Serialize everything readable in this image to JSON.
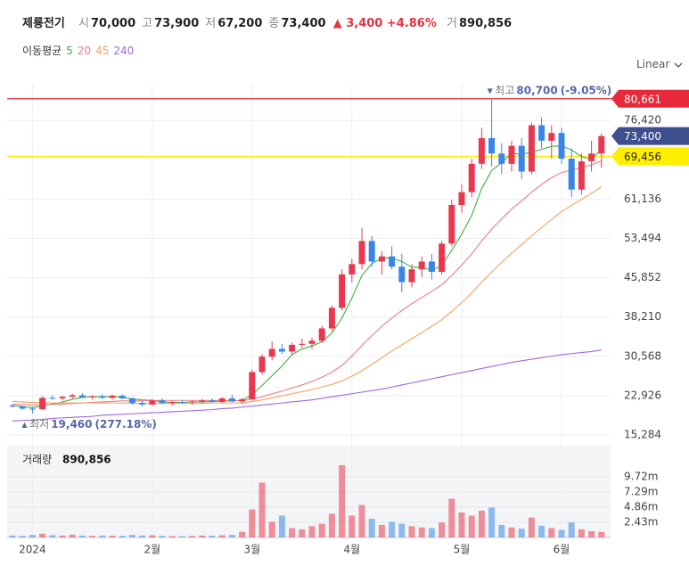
{
  "header": {
    "name": "제룡전기",
    "fields": [
      {
        "label": "시",
        "value": "70,000"
      },
      {
        "label": "고",
        "value": "73,900"
      },
      {
        "label": "저",
        "value": "67,200"
      },
      {
        "label": "종",
        "value": "73,400"
      }
    ],
    "change": "3,400",
    "change_pct": "+4.86%",
    "volume_label": "거",
    "volume": "890,856"
  },
  "chart_data": {
    "type": "candlestick",
    "scale_mode": "Linear",
    "legend_title": "이동평균",
    "grid": true,
    "up_color": "#e8384f",
    "down_color": "#3a86e8",
    "categories": [
      null,
      null,
      "2024",
      null,
      null,
      null,
      null,
      null,
      null,
      null,
      null,
      null,
      null,
      null,
      "2월",
      null,
      null,
      null,
      null,
      null,
      null,
      null,
      null,
      null,
      "3월",
      null,
      null,
      null,
      null,
      null,
      null,
      null,
      null,
      null,
      "4월",
      null,
      null,
      null,
      null,
      null,
      null,
      null,
      null,
      null,
      null,
      "5월",
      null,
      null,
      null,
      null,
      null,
      null,
      null,
      null,
      null,
      "6월",
      null,
      null,
      null,
      null
    ],
    "open": [
      21000,
      20800,
      20400,
      20300,
      22500,
      22400,
      22700,
      23000,
      22600,
      22800,
      22500,
      22900,
      22400,
      21500,
      21200,
      22000,
      21500,
      21700,
      21600,
      21800,
      22000,
      21700,
      22400,
      21800,
      22200,
      27500,
      30500,
      32000,
      31500,
      32800,
      33000,
      33600,
      36000,
      40000,
      46500,
      48500,
      53000,
      49000,
      50000,
      48000,
      45000,
      47500,
      49000,
      47000,
      52500,
      60000,
      62500,
      68000,
      73000,
      70000,
      68000,
      71500,
      66500,
      75500,
      72500,
      74000,
      69000,
      63000,
      68500,
      70000
    ],
    "high": [
      21300,
      21000,
      20700,
      22800,
      23000,
      22900,
      23300,
      23400,
      23000,
      23200,
      23100,
      23200,
      22600,
      21900,
      22300,
      22400,
      21900,
      22100,
      22000,
      22300,
      22400,
      22600,
      23100,
      22500,
      28000,
      31000,
      33500,
      33000,
      33200,
      34000,
      34200,
      36500,
      40500,
      47500,
      49500,
      55500,
      54000,
      51000,
      52000,
      50500,
      48500,
      50000,
      50500,
      53000,
      61000,
      64000,
      69000,
      75000,
      80700,
      72000,
      72500,
      73000,
      76000,
      77000,
      75500,
      75000,
      71000,
      70000,
      72500,
      73900
    ],
    "low": [
      20600,
      20200,
      19460,
      20200,
      22100,
      22000,
      22400,
      22500,
      22200,
      22300,
      22200,
      22300,
      21200,
      20900,
      21000,
      21300,
      21000,
      21300,
      21200,
      21400,
      21500,
      21500,
      21600,
      21300,
      22000,
      27000,
      29800,
      31000,
      30800,
      32200,
      32000,
      33200,
      35500,
      39500,
      45000,
      47500,
      48000,
      46500,
      47500,
      43000,
      44000,
      46000,
      45500,
      46500,
      52000,
      58500,
      61500,
      67000,
      67500,
      66000,
      66500,
      65000,
      66000,
      71000,
      69000,
      68000,
      61500,
      62000,
      66500,
      67200
    ],
    "close": [
      20800,
      20400,
      20300,
      22500,
      22400,
      22700,
      23000,
      22600,
      22800,
      22500,
      22900,
      22400,
      21500,
      21200,
      22000,
      21500,
      21700,
      21600,
      21800,
      22000,
      21700,
      22400,
      21800,
      22200,
      27500,
      30500,
      32000,
      31500,
      32800,
      33000,
      33600,
      36000,
      40000,
      46500,
      48500,
      53000,
      49000,
      50000,
      48000,
      45000,
      47500,
      49000,
      47000,
      52500,
      60000,
      62500,
      68000,
      73000,
      70000,
      68000,
      71500,
      66500,
      75500,
      72500,
      74000,
      69000,
      63000,
      68500,
      70000,
      73400
    ],
    "volume": [
      300000,
      250000,
      400000,
      600000,
      350000,
      300000,
      450000,
      300000,
      250000,
      300000,
      280000,
      250000,
      400000,
      300000,
      350000,
      250000,
      220000,
      200000,
      250000,
      300000,
      280000,
      350000,
      400000,
      900000,
      4500000,
      8800000,
      2500000,
      3500000,
      1500000,
      1300000,
      1800000,
      2200000,
      3800000,
      11600000,
      3500000,
      5200000,
      3000000,
      2000000,
      2500000,
      2200000,
      1800000,
      1600000,
      1500000,
      2400000,
      6200000,
      4000000,
      3500000,
      4300000,
      4800000,
      2000000,
      1600000,
      1400000,
      3200000,
      1900000,
      1500000,
      1200000,
      2400000,
      1300000,
      1000000,
      890856
    ],
    "volume_title": "거래량",
    "volume_value_label": "890,856",
    "series": [
      {
        "name": "5",
        "color": "#3cb043",
        "values": [
          21000,
          20800,
          20600,
          20900,
          21300,
          21700,
          22200,
          22600,
          22700,
          22700,
          22800,
          22600,
          22300,
          22100,
          22000,
          21700,
          21600,
          21600,
          21700,
          21700,
          21800,
          21900,
          21900,
          22000,
          23100,
          24900,
          26800,
          28700,
          30900,
          32000,
          32600,
          33400,
          35100,
          38000,
          41900,
          46300,
          48600,
          49700,
          49700,
          49000,
          47900,
          47900,
          47300,
          48200,
          51200,
          54300,
          58000,
          63200,
          66700,
          68200,
          70100,
          69800,
          70300,
          70800,
          71400,
          71500,
          70700,
          69400,
          68900,
          70800
        ]
      },
      {
        "name": "20",
        "color": "#f07a85",
        "values": [
          21300,
          21200,
          21100,
          21100,
          21200,
          21300,
          21400,
          21500,
          21600,
          21700,
          21800,
          21900,
          21900,
          21900,
          22000,
          22000,
          22000,
          22000,
          22000,
          22000,
          22000,
          22000,
          22000,
          21900,
          22300,
          22700,
          23300,
          23800,
          24400,
          25000,
          25700,
          26500,
          27500,
          28800,
          30600,
          32700,
          34600,
          36400,
          38000,
          39500,
          40800,
          42000,
          43200,
          44500,
          46300,
          48300,
          50500,
          53000,
          55300,
          57300,
          59200,
          60800,
          62500,
          64000,
          65300,
          66300,
          66800,
          67300,
          67800,
          68600
        ]
      },
      {
        "name": "45",
        "color": "#f5a25c",
        "values": [
          21800,
          21700,
          21600,
          21600,
          21500,
          21500,
          21500,
          21500,
          21500,
          21500,
          21500,
          21500,
          21400,
          21400,
          21400,
          21400,
          21400,
          21400,
          21400,
          21400,
          21500,
          21500,
          21500,
          21500,
          21800,
          22100,
          22500,
          22900,
          23300,
          23700,
          24100,
          24600,
          25100,
          25800,
          26700,
          27800,
          29000,
          30300,
          31600,
          32800,
          34000,
          35200,
          36400,
          37700,
          39300,
          41000,
          42900,
          45000,
          47000,
          48800,
          50600,
          52300,
          54000,
          55600,
          57200,
          58700,
          59900,
          61100,
          62300,
          63500
        ]
      },
      {
        "name": "240",
        "color": "#a066e0",
        "values": [
          18000,
          18100,
          18200,
          18300,
          18500,
          18600,
          18700,
          18800,
          18900,
          19100,
          19200,
          19300,
          19400,
          19500,
          19600,
          19700,
          19800,
          19900,
          20000,
          20100,
          20200,
          20400,
          20500,
          20700,
          20900,
          21100,
          21300,
          21500,
          21700,
          21900,
          22100,
          22400,
          22700,
          23000,
          23300,
          23600,
          23900,
          24200,
          24600,
          25000,
          25400,
          25800,
          26200,
          26600,
          27000,
          27400,
          27800,
          28200,
          28600,
          29000,
          29400,
          29700,
          30000,
          30300,
          30600,
          30900,
          31100,
          31300,
          31500,
          31800
        ]
      }
    ],
    "ylim": [
      14071,
      83391
    ],
    "yticks": [
      {
        "value": 15284,
        "label": "15,284"
      },
      {
        "value": 22926,
        "label": "22,926"
      },
      {
        "value": 30568,
        "label": "30,568"
      },
      {
        "value": 38210,
        "label": "38,210"
      },
      {
        "value": 45852,
        "label": "45,852"
      },
      {
        "value": 53494,
        "label": "53,494"
      },
      {
        "value": 61136,
        "label": "61,136"
      },
      {
        "value": 76420,
        "label": "76,420"
      }
    ],
    "volume_ylim": [
      0,
      14720000
    ],
    "volume_yticks": [
      {
        "value": 2430000,
        "label": "2.43m"
      },
      {
        "value": 4860000,
        "label": "4.86m"
      },
      {
        "value": 7290000,
        "label": "7.29m"
      },
      {
        "value": 9720000,
        "label": "9.72m"
      }
    ],
    "reference_lines": [
      {
        "value": 80661,
        "label": "80,661",
        "color": "#e8293b",
        "text_color": "#ffffff"
      },
      {
        "value": 69456,
        "label": "69,456",
        "color": "#ffee00",
        "text_color": "#222222"
      }
    ],
    "price_tag": {
      "value": 73400,
      "label": "73,400",
      "color": "#3d4f8f",
      "text_color": "#ffffff"
    },
    "annotations": [
      {
        "label": "최고",
        "value": 80700,
        "value_label": "80,700",
        "change": "(-9.05%)",
        "index": 48,
        "dir": "high"
      },
      {
        "label": "최저",
        "value": 19460,
        "value_label": "19,460",
        "change": "(277.18%)",
        "index": 2,
        "dir": "low"
      }
    ]
  }
}
